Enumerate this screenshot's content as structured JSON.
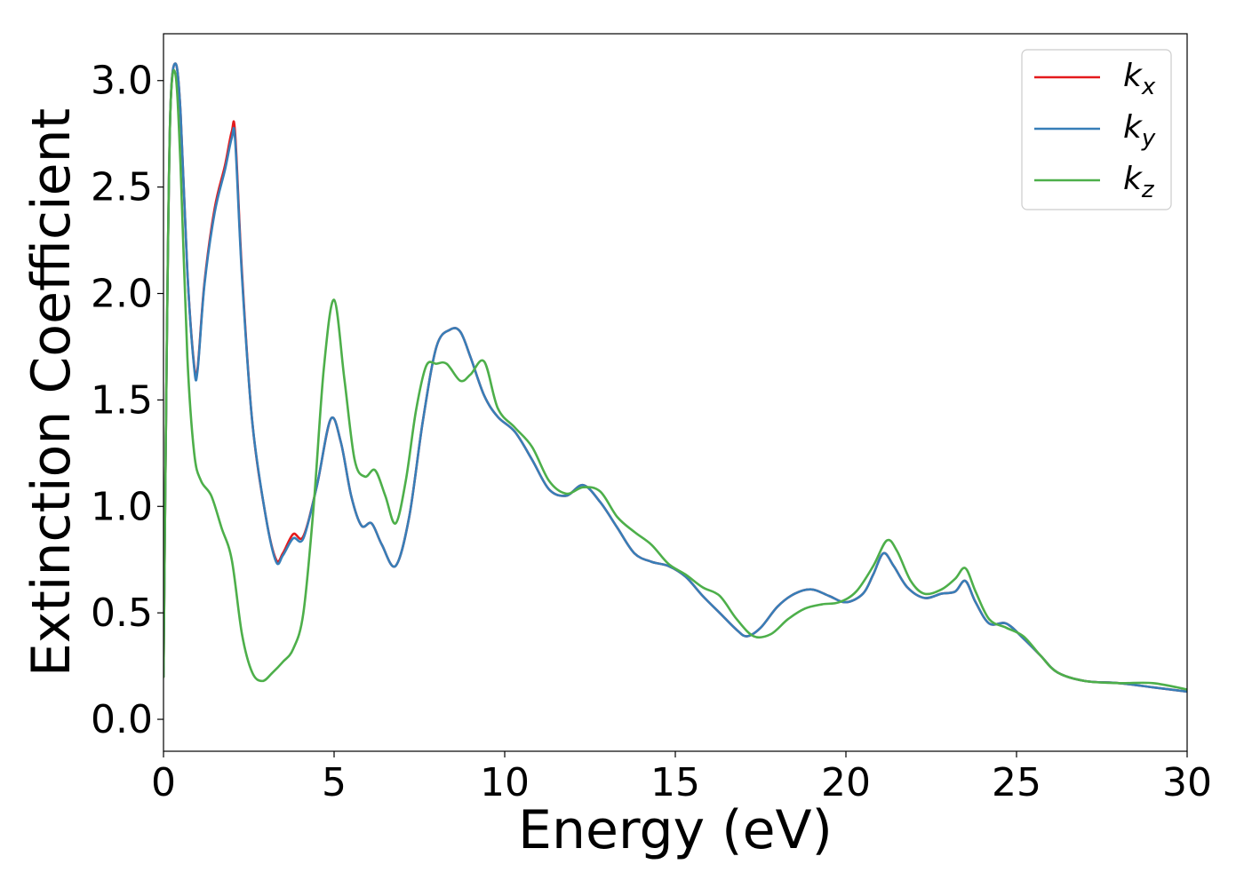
{
  "chart_data": {
    "type": "line",
    "title": "",
    "xlabel": "Energy (eV)",
    "ylabel": "Extinction Coefficient",
    "xlim": [
      0,
      30
    ],
    "ylim": [
      -0.15,
      3.22
    ],
    "xticks": [
      0,
      5,
      10,
      15,
      20,
      25,
      30
    ],
    "xtick_labels": [
      "0",
      "5",
      "10",
      "15",
      "20",
      "25",
      "30"
    ],
    "yticks": [
      0.0,
      0.5,
      1.0,
      1.5,
      2.0,
      2.5,
      3.0
    ],
    "ytick_labels": [
      "0.0",
      "0.5",
      "1.0",
      "1.5",
      "2.0",
      "2.5",
      "3.0"
    ],
    "grid": false,
    "legend_position": "top-right",
    "series": [
      {
        "name": "k",
        "subscript": "x",
        "color": "#e41a1c",
        "x": [
          0,
          0.1,
          0.2,
          0.35,
          0.5,
          0.7,
          0.9,
          1.0,
          1.2,
          1.5,
          1.8,
          2.0,
          2.1,
          2.3,
          2.6,
          3.0,
          3.3,
          3.5,
          3.8,
          4.1,
          4.5,
          4.9,
          5.2,
          5.5,
          5.8,
          6.1,
          6.4,
          6.8,
          7.2,
          7.6,
          8.0,
          8.4,
          8.7,
          9.0,
          9.4,
          9.8,
          10.3,
          10.8,
          11.3,
          11.8,
          12.3,
          12.8,
          13.3,
          13.8,
          14.3,
          14.8,
          15.3,
          15.8,
          16.3,
          16.8,
          17.1,
          17.5,
          18.0,
          18.5,
          19.0,
          19.5,
          20.0,
          20.5,
          20.8,
          21.1,
          21.4,
          21.8,
          22.3,
          22.8,
          23.2,
          23.5,
          23.8,
          24.2,
          24.7,
          25.2,
          25.7,
          26.2,
          27.0,
          28.0,
          29.0,
          30.0
        ],
        "values": [
          0.2,
          1.8,
          2.85,
          3.08,
          2.85,
          2.1,
          1.66,
          1.65,
          2.05,
          2.4,
          2.6,
          2.76,
          2.75,
          2.1,
          1.4,
          0.95,
          0.75,
          0.78,
          0.87,
          0.86,
          1.1,
          1.41,
          1.3,
          1.05,
          0.91,
          0.92,
          0.82,
          0.72,
          0.95,
          1.4,
          1.75,
          1.83,
          1.82,
          1.7,
          1.52,
          1.42,
          1.35,
          1.22,
          1.08,
          1.05,
          1.1,
          1.02,
          0.9,
          0.78,
          0.74,
          0.72,
          0.67,
          0.58,
          0.5,
          0.42,
          0.39,
          0.43,
          0.53,
          0.59,
          0.61,
          0.58,
          0.55,
          0.59,
          0.68,
          0.78,
          0.72,
          0.62,
          0.57,
          0.59,
          0.6,
          0.65,
          0.55,
          0.45,
          0.45,
          0.38,
          0.3,
          0.22,
          0.18,
          0.17,
          0.15,
          0.13
        ]
      },
      {
        "name": "k",
        "subscript": "y",
        "color": "#377eb8",
        "x": [
          0,
          0.1,
          0.2,
          0.35,
          0.5,
          0.7,
          0.9,
          1.0,
          1.2,
          1.5,
          1.8,
          2.0,
          2.1,
          2.3,
          2.6,
          3.0,
          3.3,
          3.5,
          3.8,
          4.1,
          4.5,
          4.9,
          5.2,
          5.5,
          5.8,
          6.1,
          6.4,
          6.8,
          7.2,
          7.6,
          8.0,
          8.4,
          8.7,
          9.0,
          9.4,
          9.8,
          10.3,
          10.8,
          11.3,
          11.8,
          12.3,
          12.8,
          13.3,
          13.8,
          14.3,
          14.8,
          15.3,
          15.8,
          16.3,
          16.8,
          17.1,
          17.5,
          18.0,
          18.5,
          19.0,
          19.5,
          20.0,
          20.5,
          20.8,
          21.1,
          21.4,
          21.8,
          22.3,
          22.8,
          23.2,
          23.5,
          23.8,
          24.2,
          24.7,
          25.2,
          25.7,
          26.2,
          27.0,
          28.0,
          29.0,
          30.0
        ],
        "values": [
          0.2,
          1.8,
          2.85,
          3.08,
          2.85,
          2.1,
          1.65,
          1.64,
          2.04,
          2.38,
          2.58,
          2.73,
          2.72,
          2.08,
          1.4,
          0.95,
          0.74,
          0.77,
          0.85,
          0.85,
          1.1,
          1.41,
          1.3,
          1.05,
          0.91,
          0.92,
          0.82,
          0.72,
          0.95,
          1.4,
          1.75,
          1.83,
          1.82,
          1.7,
          1.52,
          1.42,
          1.35,
          1.22,
          1.08,
          1.05,
          1.1,
          1.02,
          0.9,
          0.78,
          0.74,
          0.72,
          0.67,
          0.58,
          0.5,
          0.42,
          0.39,
          0.43,
          0.53,
          0.59,
          0.61,
          0.58,
          0.55,
          0.59,
          0.68,
          0.78,
          0.72,
          0.62,
          0.57,
          0.59,
          0.6,
          0.65,
          0.55,
          0.45,
          0.45,
          0.38,
          0.3,
          0.22,
          0.18,
          0.17,
          0.15,
          0.13
        ]
      },
      {
        "name": "k",
        "subscript": "z",
        "color": "#4daf4a",
        "x": [
          0,
          0.1,
          0.2,
          0.35,
          0.5,
          0.7,
          0.9,
          1.1,
          1.4,
          1.7,
          2.0,
          2.3,
          2.6,
          2.9,
          3.2,
          3.5,
          3.8,
          4.1,
          4.4,
          4.7,
          5.0,
          5.3,
          5.6,
          5.9,
          6.2,
          6.5,
          6.8,
          7.1,
          7.4,
          7.7,
          8.0,
          8.3,
          8.7,
          9.0,
          9.4,
          9.8,
          10.3,
          10.8,
          11.3,
          11.8,
          12.3,
          12.8,
          13.3,
          13.8,
          14.3,
          14.8,
          15.3,
          15.8,
          16.3,
          16.8,
          17.3,
          17.8,
          18.3,
          18.8,
          19.3,
          19.8,
          20.3,
          20.8,
          21.2,
          21.5,
          21.9,
          22.3,
          22.8,
          23.2,
          23.5,
          23.8,
          24.2,
          24.7,
          25.2,
          25.7,
          26.2,
          27.0,
          28.0,
          29.0,
          30.0
        ],
        "values": [
          0.2,
          1.8,
          2.85,
          3.03,
          2.6,
          1.7,
          1.25,
          1.12,
          1.05,
          0.9,
          0.75,
          0.4,
          0.22,
          0.18,
          0.22,
          0.27,
          0.33,
          0.5,
          1.0,
          1.65,
          1.97,
          1.6,
          1.22,
          1.14,
          1.17,
          1.05,
          0.92,
          1.12,
          1.45,
          1.66,
          1.67,
          1.67,
          1.59,
          1.62,
          1.68,
          1.46,
          1.37,
          1.28,
          1.12,
          1.06,
          1.09,
          1.07,
          0.95,
          0.88,
          0.82,
          0.73,
          0.68,
          0.62,
          0.58,
          0.47,
          0.39,
          0.4,
          0.47,
          0.52,
          0.54,
          0.55,
          0.6,
          0.72,
          0.84,
          0.79,
          0.65,
          0.59,
          0.61,
          0.66,
          0.71,
          0.6,
          0.47,
          0.43,
          0.39,
          0.3,
          0.22,
          0.18,
          0.17,
          0.17,
          0.14
        ]
      }
    ]
  }
}
